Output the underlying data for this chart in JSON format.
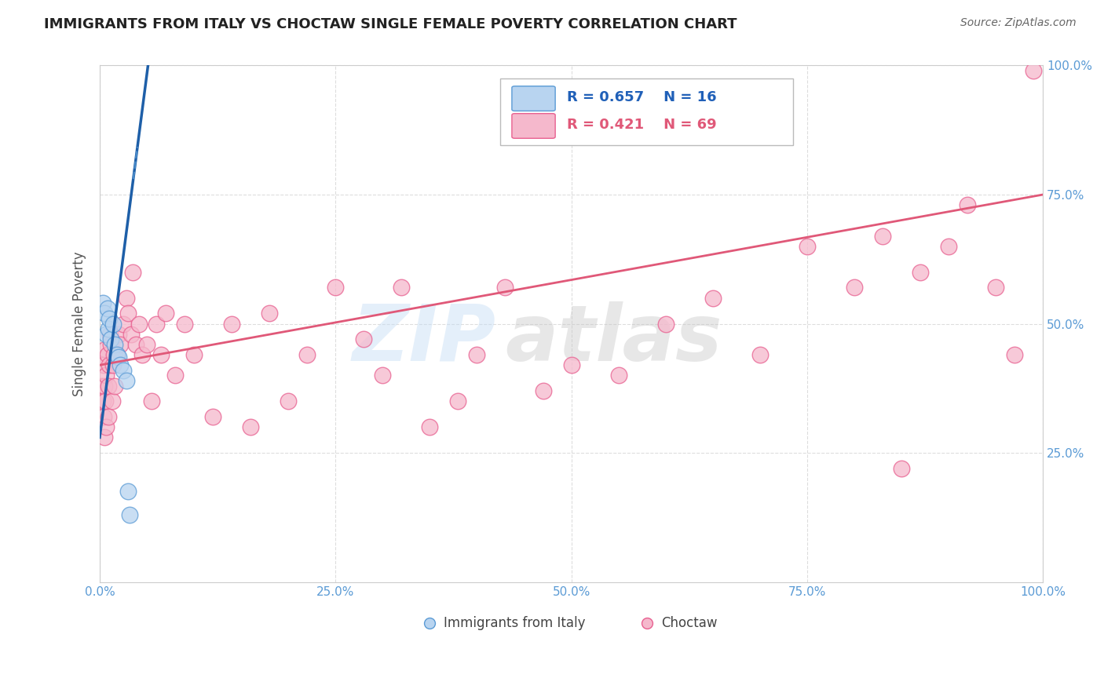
{
  "title": "IMMIGRANTS FROM ITALY VS CHOCTAW SINGLE FEMALE POVERTY CORRELATION CHART",
  "source": "Source: ZipAtlas.com",
  "ylabel": "Single Female Poverty",
  "watermark_1": "ZIP",
  "watermark_2": "atlas",
  "background_color": "#ffffff",
  "grid_color": "#cccccc",
  "xlim": [
    0.0,
    1.0
  ],
  "ylim": [
    0.0,
    1.0
  ],
  "xticks": [
    0.0,
    0.25,
    0.5,
    0.75,
    1.0
  ],
  "yticks": [
    0.25,
    0.5,
    0.75,
    1.0
  ],
  "xticklabels": [
    "0.0%",
    "25.0%",
    "50.0%",
    "75.0%",
    "100.0%"
  ],
  "yticklabels": [
    "25.0%",
    "50.0%",
    "75.0%",
    "100.0%"
  ],
  "tick_color": "#5b9bd5",
  "italy_fill": "#b8d4f0",
  "italy_edge": "#5b9bd5",
  "italy_line_color": "#1e5fa8",
  "italy_line_dash_color": "#5b9bd5",
  "italy_R": 0.657,
  "italy_N": 16,
  "choctaw_fill": "#f5b8cc",
  "choctaw_edge": "#e86090",
  "choctaw_line_color": "#e05878",
  "choctaw_R": 0.421,
  "choctaw_N": 69,
  "italy_x": [
    0.003,
    0.005,
    0.007,
    0.008,
    0.009,
    0.01,
    0.012,
    0.014,
    0.016,
    0.018,
    0.02,
    0.022,
    0.025,
    0.028,
    0.03,
    0.032
  ],
  "italy_y": [
    0.54,
    0.52,
    0.48,
    0.53,
    0.49,
    0.51,
    0.47,
    0.5,
    0.46,
    0.44,
    0.435,
    0.42,
    0.41,
    0.39,
    0.175,
    0.13
  ],
  "choctaw_x": [
    0.002,
    0.003,
    0.004,
    0.004,
    0.005,
    0.005,
    0.006,
    0.006,
    0.007,
    0.007,
    0.008,
    0.009,
    0.009,
    0.01,
    0.011,
    0.012,
    0.013,
    0.014,
    0.015,
    0.016,
    0.018,
    0.02,
    0.022,
    0.025,
    0.028,
    0.03,
    0.033,
    0.035,
    0.038,
    0.042,
    0.045,
    0.05,
    0.055,
    0.06,
    0.065,
    0.07,
    0.08,
    0.09,
    0.1,
    0.12,
    0.14,
    0.16,
    0.18,
    0.2,
    0.22,
    0.25,
    0.28,
    0.3,
    0.32,
    0.35,
    0.38,
    0.4,
    0.43,
    0.47,
    0.5,
    0.55,
    0.6,
    0.65,
    0.7,
    0.75,
    0.8,
    0.83,
    0.85,
    0.87,
    0.9,
    0.92,
    0.95,
    0.97,
    0.99
  ],
  "choctaw_y": [
    0.38,
    0.35,
    0.42,
    0.32,
    0.38,
    0.28,
    0.45,
    0.35,
    0.4,
    0.3,
    0.44,
    0.38,
    0.32,
    0.42,
    0.48,
    0.46,
    0.35,
    0.42,
    0.44,
    0.38,
    0.44,
    0.48,
    0.46,
    0.5,
    0.55,
    0.52,
    0.48,
    0.6,
    0.46,
    0.5,
    0.44,
    0.46,
    0.35,
    0.5,
    0.44,
    0.52,
    0.4,
    0.5,
    0.44,
    0.32,
    0.5,
    0.3,
    0.52,
    0.35,
    0.44,
    0.57,
    0.47,
    0.4,
    0.57,
    0.3,
    0.35,
    0.44,
    0.57,
    0.37,
    0.42,
    0.4,
    0.5,
    0.55,
    0.44,
    0.65,
    0.57,
    0.67,
    0.22,
    0.6,
    0.65,
    0.73,
    0.57,
    0.44,
    0.99
  ],
  "italy_line_x0": 0.0,
  "italy_line_y0": 0.28,
  "italy_line_x1": 0.032,
  "italy_line_y1": 0.73,
  "choctaw_line_x0": 0.0,
  "choctaw_line_y0": 0.42,
  "choctaw_line_x1": 1.0,
  "choctaw_line_y1": 0.75
}
